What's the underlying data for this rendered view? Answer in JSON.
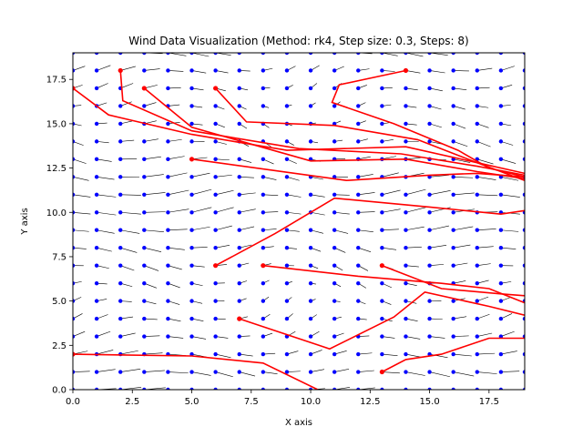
{
  "chart_data": {
    "type": "scatter",
    "title": "Wind Data Visualization (Method: rk4, Step size: 0.3, Steps: 8)",
    "xlabel": "X axis",
    "ylabel": "Y axis",
    "xlim": [
      0,
      19
    ],
    "ylim": [
      0,
      19
    ],
    "xticks": [
      "0.0",
      "2.5",
      "5.0",
      "7.5",
      "10.0",
      "12.5",
      "15.0",
      "17.5"
    ],
    "yticks": [
      "0.0",
      "2.5",
      "5.0",
      "7.5",
      "10.0",
      "12.5",
      "15.0",
      "17.5"
    ],
    "grid": false,
    "colors": {
      "points": "#0000ff",
      "trajectories": "#ff0000",
      "vectors": "#000000"
    },
    "grid_points": {
      "x_range": [
        0,
        19
      ],
      "y_range": [
        0,
        19
      ],
      "spacing": 1
    },
    "trajectories": [
      {
        "points": [
          [
            14,
            18
          ],
          [
            11.2,
            17.2
          ],
          [
            10.9,
            16.2
          ],
          [
            13.5,
            15.0
          ],
          [
            16.2,
            13.5
          ],
          [
            17.5,
            12.5
          ],
          [
            19,
            12.0
          ]
        ]
      },
      {
        "points": [
          [
            2,
            18
          ],
          [
            2.1,
            16.3
          ],
          [
            5.0,
            14.6
          ],
          [
            9.5,
            13.6
          ],
          [
            13.8,
            13.3
          ],
          [
            17.0,
            12.6
          ],
          [
            19,
            12.1
          ]
        ]
      },
      {
        "points": [
          [
            3,
            17
          ],
          [
            5.0,
            14.8
          ],
          [
            10.0,
            12.9
          ],
          [
            14.0,
            13.0
          ],
          [
            17.0,
            12.3
          ],
          [
            19,
            11.9
          ]
        ]
      },
      {
        "points": [
          [
            6,
            17
          ],
          [
            7.3,
            15.1
          ],
          [
            11.0,
            14.9
          ],
          [
            14.5,
            14.1
          ],
          [
            17.0,
            12.8
          ],
          [
            19,
            11.8
          ]
        ]
      },
      {
        "points": [
          [
            0,
            17
          ],
          [
            1.5,
            15.5
          ],
          [
            5.0,
            14.4
          ],
          [
            9.0,
            13.5
          ],
          [
            14.0,
            13.7
          ],
          [
            17.0,
            12.8
          ],
          [
            19,
            12.2
          ]
        ]
      },
      {
        "points": [
          [
            5,
            13
          ],
          [
            11.5,
            11.8
          ],
          [
            15.0,
            12.1
          ],
          [
            17.0,
            12.2
          ],
          [
            19,
            12.0
          ]
        ]
      },
      {
        "points": [
          [
            6,
            7
          ],
          [
            8.5,
            8.8
          ],
          [
            11.0,
            10.8
          ],
          [
            15.0,
            10.3
          ],
          [
            18.0,
            9.9
          ],
          [
            19,
            10.1
          ]
        ]
      },
      {
        "points": [
          [
            8,
            7
          ],
          [
            12.0,
            6.4
          ],
          [
            15.5,
            6.0
          ],
          [
            17.5,
            5.7
          ],
          [
            19,
            4.9
          ]
        ]
      },
      {
        "points": [
          [
            13,
            7
          ],
          [
            15.5,
            5.7
          ],
          [
            18.0,
            5.4
          ],
          [
            19,
            5.3
          ]
        ]
      },
      {
        "points": [
          [
            7,
            4
          ],
          [
            10.8,
            2.3
          ],
          [
            13.5,
            4.1
          ],
          [
            14.8,
            5.5
          ],
          [
            17.5,
            4.7
          ],
          [
            19,
            4.2
          ]
        ]
      },
      {
        "points": [
          [
            0,
            2
          ],
          [
            5.0,
            1.9
          ],
          [
            8.0,
            1.5
          ],
          [
            10.3,
            0.0
          ]
        ]
      },
      {
        "points": [
          [
            13,
            1
          ],
          [
            14.0,
            1.7
          ],
          [
            15.5,
            2.0
          ],
          [
            17.5,
            2.9
          ],
          [
            19,
            2.9
          ]
        ]
      }
    ]
  }
}
